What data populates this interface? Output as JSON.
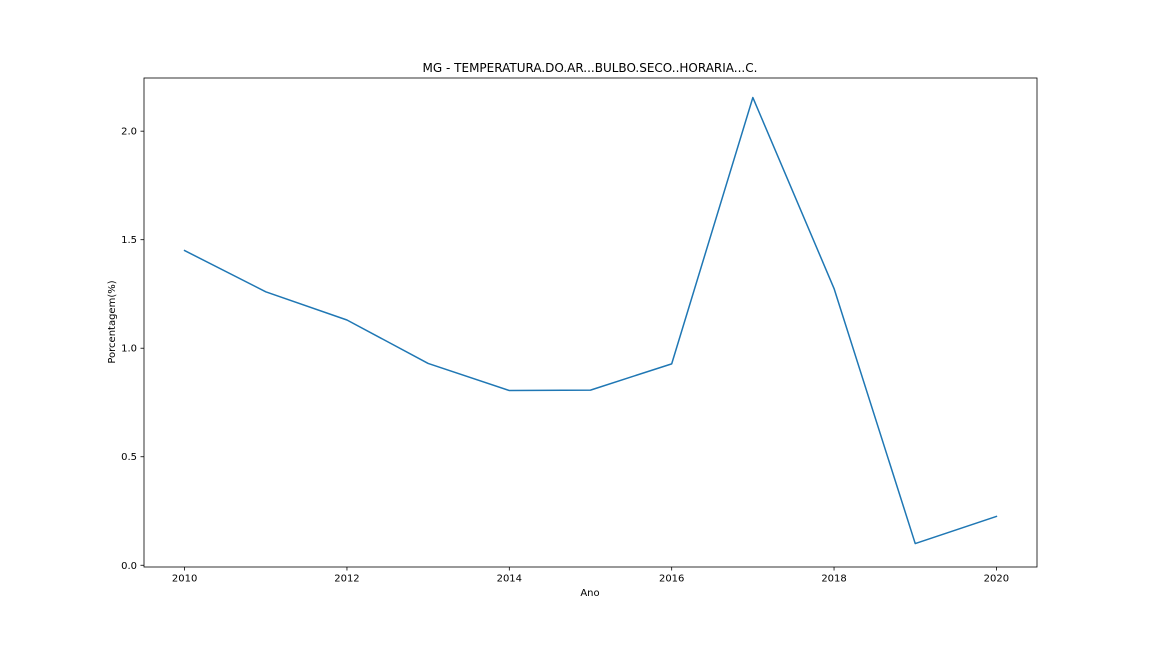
{
  "chart_data": {
    "type": "line",
    "title": "MG - TEMPERATURA.DO.AR...BULBO.SECO..HORARIA...C.",
    "xlabel": "Ano",
    "ylabel": "Porcentagem(%)",
    "x": [
      2010,
      2011,
      2012,
      2013,
      2014,
      2015,
      2016,
      2017,
      2018,
      2019,
      2020
    ],
    "series": [
      {
        "values": [
          1.45,
          1.26,
          1.13,
          0.93,
          0.805,
          0.807,
          0.928,
          2.155,
          1.275,
          0.1,
          0.225
        ]
      }
    ],
    "xlim": [
      2009.5,
      2020.5
    ],
    "ylim": [
      -0.008,
      2.245
    ],
    "xticks": [
      2010,
      2012,
      2014,
      2016,
      2018,
      2020
    ],
    "xtick_labels": [
      "2010",
      "2012",
      "2014",
      "2016",
      "2018",
      "2020"
    ],
    "yticks": [
      0.0,
      0.5,
      1.0,
      1.5,
      2.0
    ],
    "ytick_labels": [
      "0.0",
      "0.5",
      "1.0",
      "1.5",
      "2.0"
    ],
    "grid": false,
    "legend": "none",
    "line_color": "#1f77b4"
  }
}
